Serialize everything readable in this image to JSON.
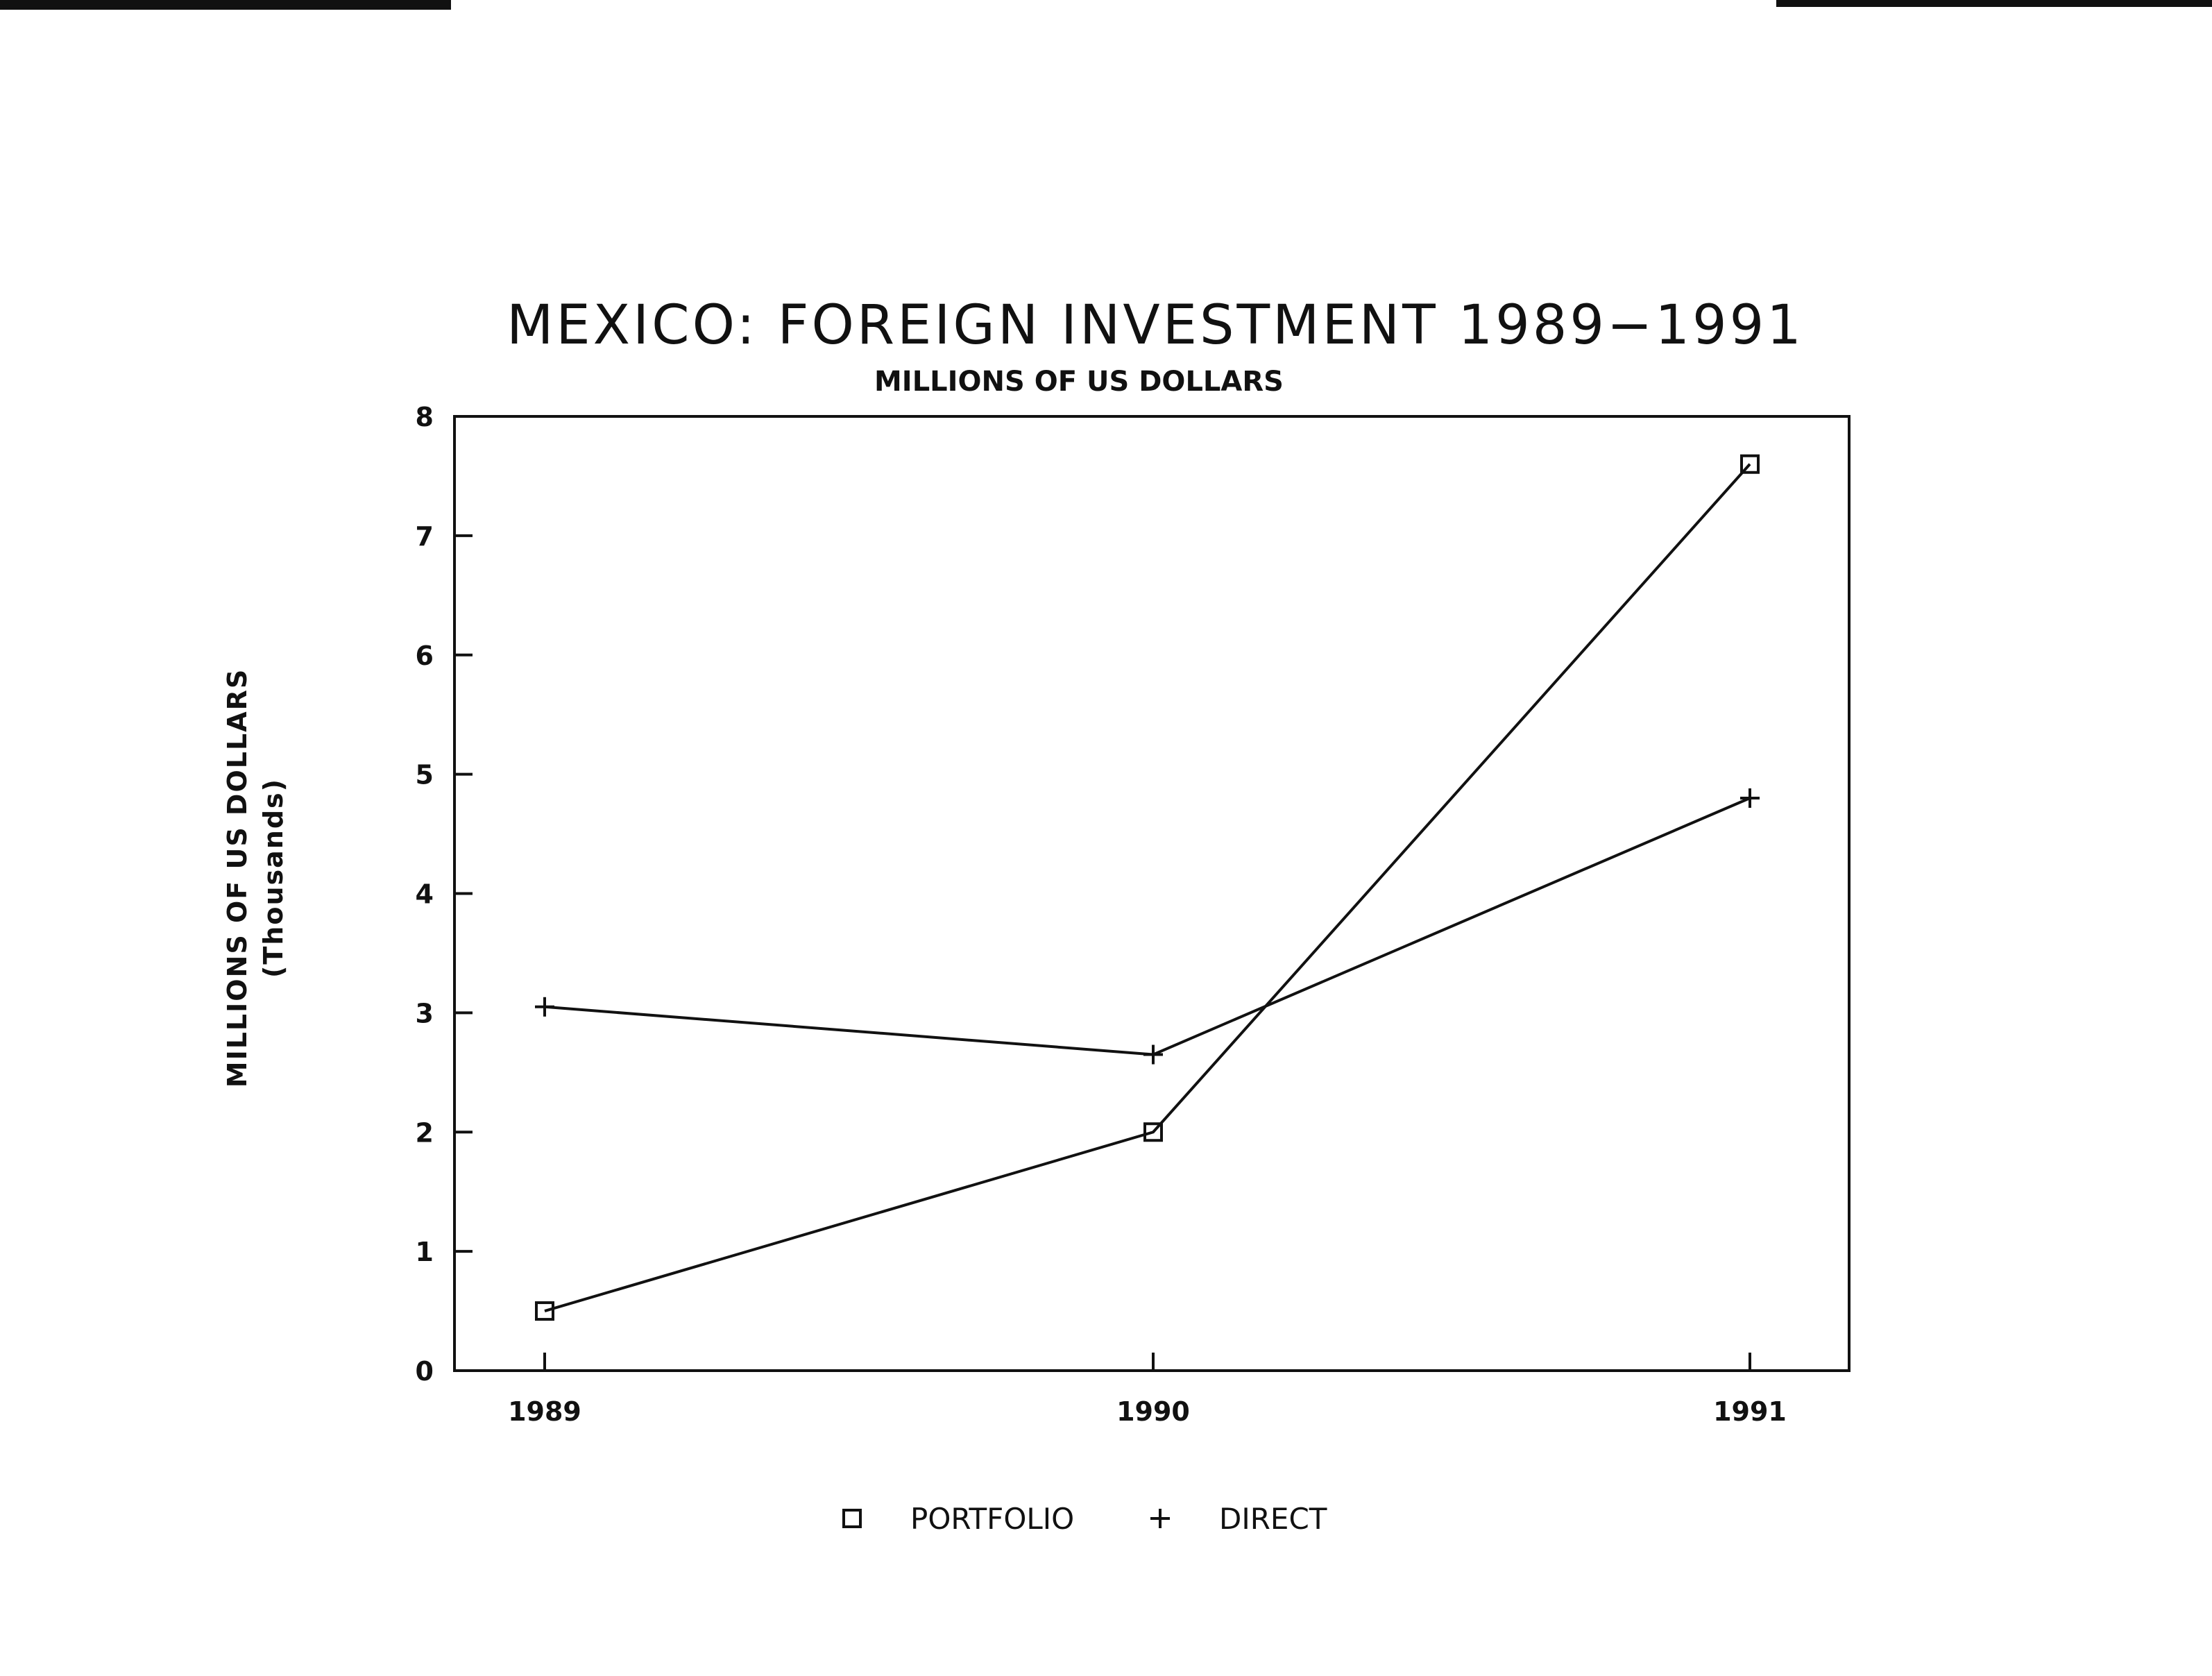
{
  "chart_data": {
    "type": "line",
    "title": "MEXICO: FOREIGN INVESTMENT 1989−1991",
    "subtitle": "MILLIONS OF US DOLLARS",
    "ylabel": "MILLIONS OF US DOLLARS",
    "ylabel_sub": "(Thousands)",
    "xlabel": "",
    "x": [
      "1989",
      "1990",
      "1991"
    ],
    "ylim": [
      0,
      8
    ],
    "yticks": [
      "0",
      "1",
      "2",
      "3",
      "4",
      "5",
      "6",
      "7",
      "8"
    ],
    "grid": false,
    "legend_position": "bottom",
    "series": [
      {
        "name": "PORTFOLIO",
        "marker": "square",
        "values": [
          0.5,
          2.0,
          7.6
        ]
      },
      {
        "name": "DIRECT",
        "marker": "plus",
        "values": [
          3.05,
          2.65,
          4.8
        ]
      }
    ]
  },
  "colors": {
    "ink": "#111111",
    "background": "#ffffff"
  }
}
